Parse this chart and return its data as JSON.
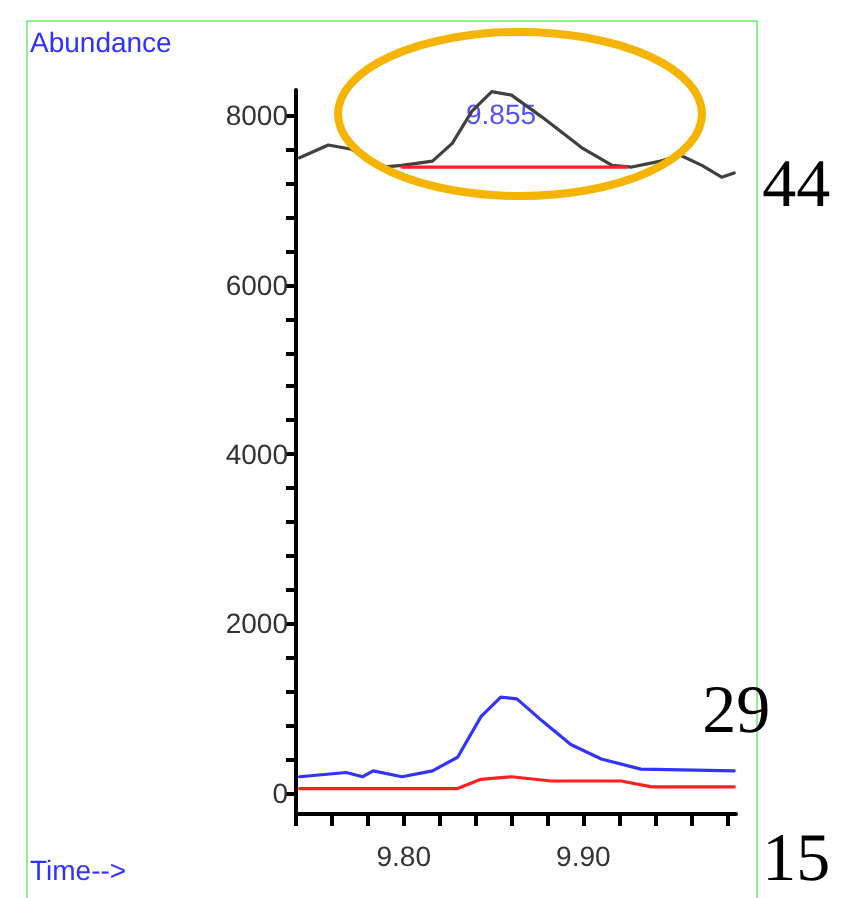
{
  "chart_data": {
    "type": "line",
    "xlabel": "Time-->",
    "ylabel": "Abundance",
    "xlim": [
      9.74,
      9.985
    ],
    "ylim": [
      -250,
      8300
    ],
    "xticks": [
      {
        "value": 9.74,
        "label": null
      },
      {
        "value": 9.76,
        "label": null
      },
      {
        "value": 9.78,
        "label": null
      },
      {
        "value": 9.8,
        "label": "9.80"
      },
      {
        "value": 9.82,
        "label": null
      },
      {
        "value": 9.84,
        "label": null
      },
      {
        "value": 9.86,
        "label": null
      },
      {
        "value": 9.88,
        "label": null
      },
      {
        "value": 9.9,
        "label": "9.90"
      },
      {
        "value": 9.92,
        "label": null
      },
      {
        "value": 9.94,
        "label": null
      },
      {
        "value": 9.96,
        "label": null
      },
      {
        "value": 9.98,
        "label": null
      }
    ],
    "yticks": [
      0,
      {
        "value": 400,
        "label": null
      },
      {
        "value": 800,
        "label": null
      },
      {
        "value": 1200,
        "label": null
      },
      {
        "value": 1600,
        "label": null
      },
      2000,
      {
        "value": 2400,
        "label": null
      },
      {
        "value": 2800,
        "label": null
      },
      {
        "value": 3200,
        "label": null
      },
      {
        "value": 3600,
        "label": null
      },
      4000,
      {
        "value": 4400,
        "label": null
      },
      {
        "value": 4800,
        "label": null
      },
      {
        "value": 5200,
        "label": null
      },
      {
        "value": 5600,
        "label": null
      },
      6000,
      {
        "value": 6400,
        "label": null
      },
      {
        "value": 6800,
        "label": null
      },
      {
        "value": 7200,
        "label": null
      },
      {
        "value": 7600,
        "label": null
      },
      8000
    ],
    "grid": false,
    "legend": false,
    "marker": "none",
    "line_style": "solid",
    "annotations": [
      "9.855"
    ],
    "series": [
      {
        "name": "44",
        "color": "#404040",
        "x": [
          9.742,
          9.758,
          9.771,
          9.788,
          9.799,
          9.816,
          9.827,
          9.838,
          9.849,
          9.86,
          9.877,
          9.899,
          9.916,
          9.927,
          9.943,
          9.954,
          9.966,
          9.977,
          9.984
        ],
        "values": [
          7500,
          7650,
          7600,
          7390,
          7410,
          7460,
          7670,
          8050,
          8280,
          8240,
          7980,
          7620,
          7410,
          7390,
          7460,
          7530,
          7410,
          7270,
          7320
        ]
      },
      {
        "name": "29",
        "color": "#3333ff",
        "x": [
          9.742,
          9.768,
          9.777,
          9.783,
          9.799,
          9.816,
          9.83,
          9.843,
          9.854,
          9.863,
          9.877,
          9.893,
          9.91,
          9.932,
          9.984
        ],
        "values": [
          190,
          240,
          190,
          260,
          190,
          260,
          420,
          900,
          1130,
          1110,
          850,
          570,
          400,
          280,
          260
        ]
      },
      {
        "name": "15",
        "color": "#ff2020",
        "x": [
          9.742,
          9.83,
          9.843,
          9.86,
          9.882,
          9.921,
          9.938,
          9.984
        ],
        "values": [
          50,
          50,
          160,
          190,
          140,
          140,
          70,
          70
        ]
      },
      {
        "color": "#ff2020",
        "x": [
          9.799,
          9.924
        ],
        "values": [
          7390,
          7390
        ]
      }
    ]
  }
}
